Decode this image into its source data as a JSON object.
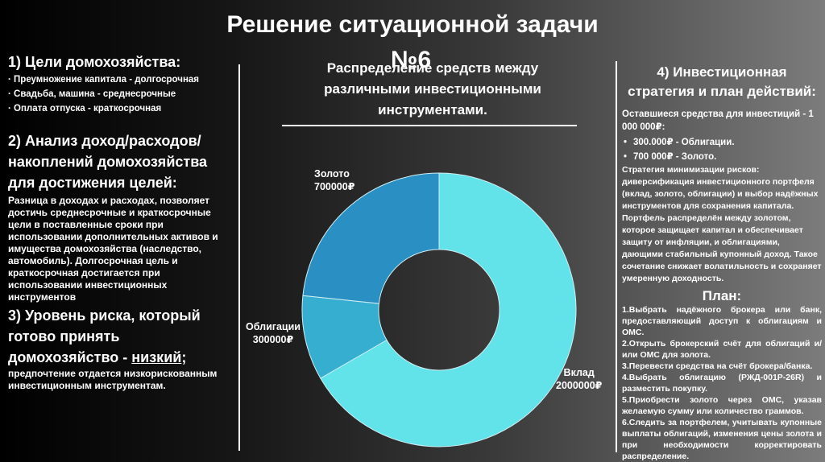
{
  "title": "Решение ситуационной задачи",
  "title_number": "№6",
  "left": {
    "goals_title": "1) Цели домохозяйства:",
    "goals": [
      "· Преумножение капитала - долгосрочная",
      "· Свадьба, машина - среднесрочные",
      "· Оплата отпуска - краткосрочная"
    ],
    "analysis_title": "2) Анализ доход/расходов/накоплений домохозяйства для достижения целей:",
    "analysis_text": "Разница в доходах и расходах, позволяет достичь среднесрочные и краткосрочные цели в поставленные сроки при использовании дополнительных активов и имущества домохозяйства (наследство, автомобиль). Долгосрочная цель и краткосрочная достигается при использовании инвестиционных инструментов",
    "risk_title_prefix": "3) Уровень риска, который готово принять домохозяйство - ",
    "risk_level": "низкий",
    "risk_title_suffix": ";",
    "risk_text": "предпочтение отдается низкорискованным инвестиционным инструментам."
  },
  "chart_data": {
    "type": "pie",
    "title": "Распределение средств между различными инвестиционными инструментами.",
    "slices": [
      {
        "name": "Вклад",
        "value": 2000000,
        "label": "2000000₽",
        "color": "#62e3ea"
      },
      {
        "name": "Облигации",
        "value": 300000,
        "label": "300000₽",
        "color": "#36aed0"
      },
      {
        "name": "Золото",
        "value": 700000,
        "label": "700000₽",
        "color": "#2a8fc3"
      }
    ],
    "donut": true
  },
  "right": {
    "strategy_title": "4) Инвестиционная стратегия и план действий:",
    "remaining": "Оставшиеся средства для инвестиций - 1 000 000₽:",
    "allocation": [
      "300.000₽ - Облигации.",
      "700 000₽ - Золото."
    ],
    "strategy_text": "Стратегия минимизации рисков: диверсификация инвестиционного портфеля (вклад, золото, облигации) и выбор надёжных инструментов для сохранения капитала. Портфель распределён между золотом, которое защищает капитал и обеспечивает защиту от инфляции, и облигациями, дающими стабильный купонный доход. Такое сочетание снижает волатильность и сохраняет умеренную доходность.",
    "plan_title": "План:",
    "plan": [
      "1.Выбрать надёжного брокера или банк, предоставляющий доступ к облигациям и ОМС.",
      "2.Открыть брокерский счёт для облигаций и/или ОМС для золота.",
      "3.Перевести средства на счёт брокера/банка.",
      "4.Выбрать облигацию (РЖД-001Р-26R) и разместить покупку.",
      "5.Приобрести золото через ОМС, указав желаемую сумму или количество граммов.",
      "6.Следить за портфелем, учитывать купонные выплаты облигаций, изменения цены золота и при необходимости корректировать распределение."
    ]
  }
}
